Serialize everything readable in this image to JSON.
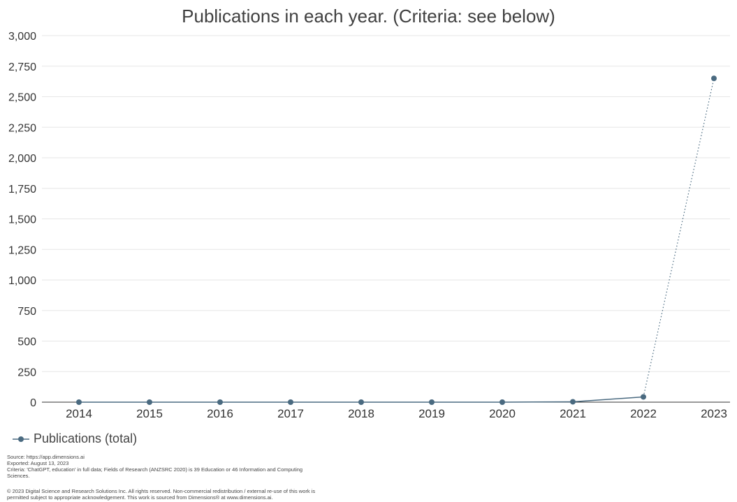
{
  "chart_data": {
    "type": "line",
    "title": "Publications in each year. (Criteria: see below)",
    "categories": [
      "2014",
      "2015",
      "2016",
      "2017",
      "2018",
      "2019",
      "2020",
      "2021",
      "2022",
      "2023"
    ],
    "series": [
      {
        "name": "Publications (total)",
        "values": [
          0,
          0,
          0,
          0,
          0,
          0,
          0,
          3,
          43,
          2650
        ]
      }
    ],
    "last_segment_style": "dotted",
    "ylim": [
      0,
      3000
    ],
    "yticks": [
      0,
      250,
      500,
      750,
      1000,
      1250,
      1500,
      1750,
      2000,
      2250,
      2500,
      2750,
      3000
    ],
    "ytick_labels": [
      "0",
      "250",
      "500",
      "750",
      "1,000",
      "1,250",
      "1,500",
      "1,750",
      "2,000",
      "2,250",
      "2,500",
      "2,750",
      "3,000"
    ],
    "grid": true,
    "legend_position": "bottom-left",
    "colors": {
      "series": "#4a6a80",
      "grid": "#e6e6e6",
      "axis": "#333333"
    }
  },
  "footer": {
    "source": "Source: https://app.dimensions.ai",
    "exported": "Exported: August 13, 2023",
    "criteria_line1": "Criteria: 'ChatGPT, education' in full data; Fields of Research (ANZSRC 2020) is 39 Education or 46 Information and Computing",
    "criteria_line2": "Sciences.",
    "copyright_line1": "© 2023 Digital Science and Research Solutions Inc. All rights reserved. Non-commercial redistribution / external re-use of this work is",
    "copyright_line2": "permitted subject to appropriate acknowledgement. This work is sourced from Dimensions® at www.dimensions.ai."
  }
}
